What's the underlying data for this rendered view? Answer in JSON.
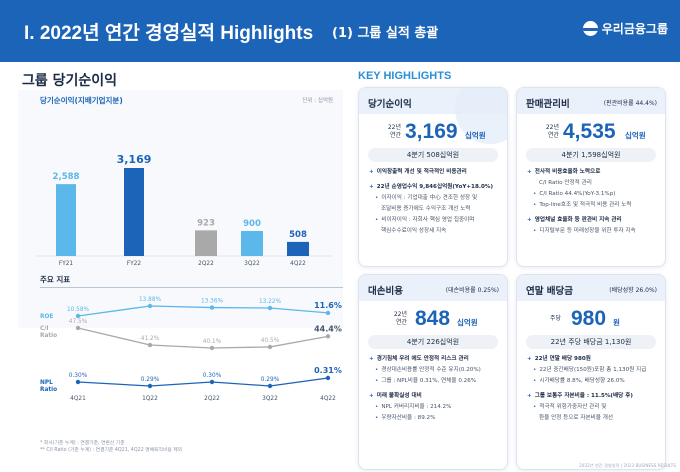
{
  "header": {
    "title": "I. 2022년 연간 경영실적 Highlights",
    "subtitle": "(1) 그룹 실적 총괄",
    "logo_text": "우리금융그룹",
    "bg": "#1c64b7"
  },
  "left": {
    "section_title": "그룹 당기순이익",
    "panel_label": "당기순이익(지배기업지분)",
    "unit": "단위 : 십억원",
    "sub_title": "주요 지표",
    "footnotes": [
      "* 회사(기준 누계) : 연결기준, 연환산 기준",
      "** C/I Ratio (기준 누계) : 연결기준 4Q21, 4Q22 명예퇴직비용 제외"
    ]
  },
  "chart_data": [
    {
      "type": "bar",
      "title": "당기순이익(지배기업지분)",
      "unit": "단위 : 십억원",
      "categories": [
        "FY21",
        "FY22",
        "2Q22",
        "3Q22",
        "4Q22"
      ],
      "values": [
        2588,
        3169,
        923,
        900,
        508
      ],
      "value_labels": [
        "2,588",
        "3,169",
        "923",
        "900",
        "508"
      ],
      "colors": [
        "#5cb7ea",
        "#1c64b7",
        "#a9a9a9",
        "#5cb7ea",
        "#1c64b7"
      ],
      "label_colors": [
        "#5cb7ea",
        "#1c64b7",
        "#a9a9a9",
        "#5cb7ea",
        "#1c64b7"
      ],
      "groups": [
        [
          "FY21",
          "FY22"
        ],
        [
          "2Q22",
          "3Q22",
          "4Q22"
        ]
      ]
    },
    {
      "type": "line",
      "categories": [
        "4Q21",
        "1Q22",
        "2Q22",
        "3Q22",
        "4Q22"
      ],
      "series": [
        {
          "name": "ROE",
          "values": [
            10.58,
            13.88,
            13.36,
            13.22,
            11.6
          ],
          "labels": [
            "10.58%",
            "13.88%",
            "13.36%",
            "13.22%",
            "11.6%"
          ],
          "color": "#5cb7ea"
        },
        {
          "name": "C/I Ratio",
          "values": [
            47.5,
            41.2,
            40.1,
            40.5,
            44.4
          ],
          "labels": [
            "47.5%",
            "41.2%",
            "40.1%",
            "40.5%",
            "44.4%"
          ],
          "color": "#a9a9a9"
        },
        {
          "name": "NPL Ratio",
          "values": [
            0.3,
            0.29,
            0.3,
            0.29,
            0.31
          ],
          "labels": [
            "0.30%",
            "0.29%",
            "0.30%",
            "0.29%",
            "0.31%"
          ],
          "color": "#1c64b7"
        }
      ],
      "series_labels": [
        "ROE",
        "C/I\nRatio",
        "NPL\nRatio"
      ]
    }
  ],
  "right": {
    "title": "KEY HIGHLIGHTS",
    "cards": [
      {
        "title": "당기순이익",
        "note": "",
        "pre": "22년\n연간",
        "value": "3,169",
        "unit": "십억원",
        "pill": "4분기 508십억원",
        "bullets": [
          {
            "t": "이익창출력 개선 및 적극적인 비용관리",
            "k": "main"
          },
          {
            "t": "22년 순영업수익 9,846십억원(YoY+18.0%)",
            "k": "main"
          },
          {
            "t": "이자이익 : 기업대출 中心 견조한 성장 및",
            "k": "sub"
          },
          {
            "t": "조달비용 증가에도 수익구조 개선 노력",
            "k": "cont"
          },
          {
            "t": "비이자이익 : 자회사 핵심 영업 집중이며",
            "k": "sub"
          },
          {
            "t": "핵심수수료이익 성장세 지속",
            "k": "cont"
          }
        ]
      },
      {
        "title": "판매관리비",
        "note": "(판관비용률 44.4%)",
        "pre": "22년\n연간",
        "value": "4,535",
        "unit": "십억원",
        "pill": "4분기 1,598십억원",
        "bullets": [
          {
            "t": "전사적 비용효율화 노력으로",
            "k": "main"
          },
          {
            "t": "C/I Ratio 안정적 관리",
            "k": "cont"
          },
          {
            "t": "C/I Ratio 44.4%(YoY-3.1%p)",
            "k": "sub"
          },
          {
            "t": "Top-line호조 및 적극적 비용 관리 노력",
            "k": "sub"
          },
          {
            "t": "영업채널 효율화 등 판관비 지속 관리",
            "k": "main"
          },
          {
            "t": "디지털부문 등 미래성장을 위한 투자 지속",
            "k": "sub"
          }
        ]
      },
      {
        "title": "대손비용",
        "note": "(대손비용률 0.25%)",
        "pre": "22년\n연간",
        "value": "848",
        "unit": "십억원",
        "pill": "4분기 226십억원",
        "bullets": [
          {
            "t": "경기침체 우려 에도 안정적 리스크 관리",
            "k": "main"
          },
          {
            "t": "경상대손비용률 안정적 수준 유지(0.20%)",
            "k": "sub"
          },
          {
            "t": "그룹 : NPL비율 0.31%, 연체율 0.26%",
            "k": "sub"
          },
          {
            "t": "미래 불확실성 대비",
            "k": "main"
          },
          {
            "t": "NPL 커버리지비율 : 214.2%",
            "k": "sub"
          },
          {
            "t": "우량자산비율 : 89.2%",
            "k": "sub"
          }
        ]
      },
      {
        "title": "연말 배당금",
        "note": "(배당성향 26.0%)",
        "pre": "주당",
        "value": "980",
        "unit": "원",
        "pill": "22년 주당 배당금 1,130원",
        "bullets": [
          {
            "t": "22년 연말 배당 980원",
            "k": "main"
          },
          {
            "t": "22년 중간배당(150원)포함 총 1,130원 지급",
            "k": "sub"
          },
          {
            "t": "시가배당률 8.8%, 배당성향 26.0%",
            "k": "sub"
          },
          {
            "t": "그룹 보통주 자본비율 : 11.5%(배당 후)",
            "k": "main"
          },
          {
            "t": "적극적 위험가중자산 관리 및",
            "k": "sub"
          },
          {
            "t": "환율 안정 등으로 자본비율 개선",
            "k": "cont"
          }
        ]
      }
    ],
    "copyright": "2022년 연간 경영실적 | 2023 BUSINESS RESULTS"
  }
}
